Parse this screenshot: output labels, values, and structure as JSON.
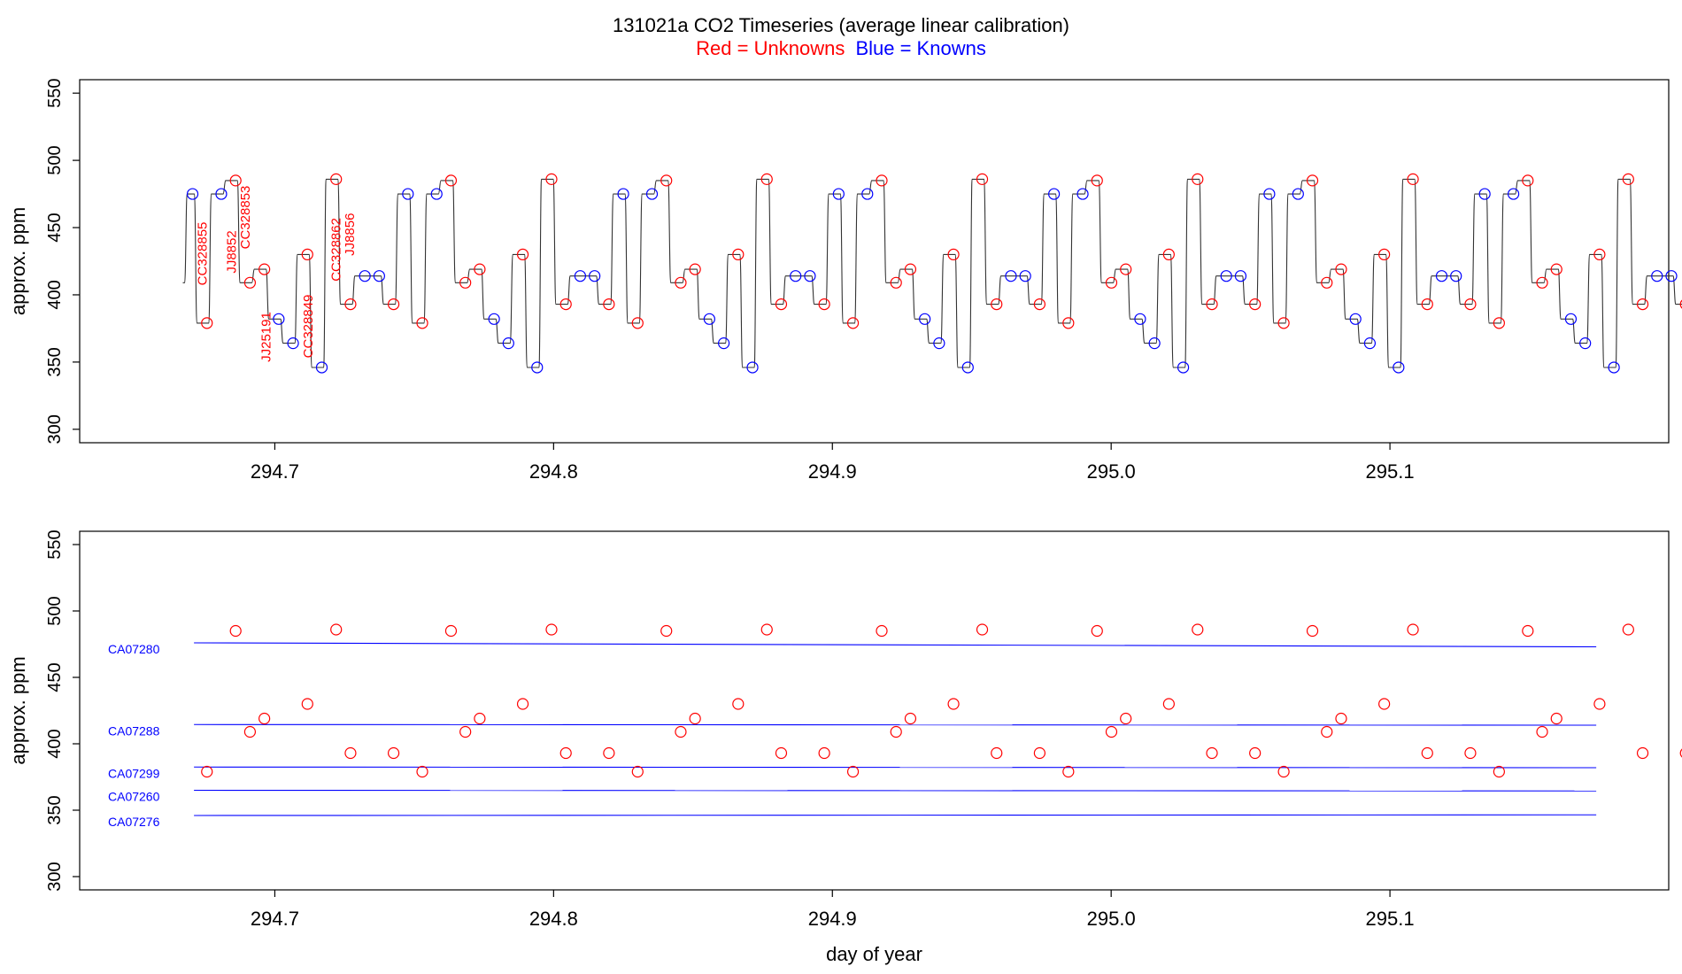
{
  "title": {
    "main": "131021a   CO2 Timeseries (average linear calibration)",
    "legend_red": "Red = Unknowns",
    "legend_blue": "Blue = Knowns"
  },
  "colors": {
    "unknown": "#ff0000",
    "known": "#0000ff",
    "trace": "#000000"
  },
  "chart_data": [
    {
      "type": "line",
      "panel": "top",
      "title": "131021a   CO2 Timeseries (average linear calibration)",
      "ylabel": "approx. ppm",
      "xlabel": "",
      "xlim": [
        294.63,
        295.2
      ],
      "ylim": [
        290,
        560
      ],
      "x_ticks": [
        294.7,
        294.8,
        294.9,
        295.0,
        295.1
      ],
      "x_tick_labels": [
        "294.7",
        "294.8",
        "294.9",
        "295.0",
        "295.1"
      ],
      "y_ticks": [
        300,
        350,
        400,
        450,
        500,
        550
      ],
      "y_tick_labels": [
        "300",
        "350",
        "400",
        "450",
        "500",
        "550"
      ],
      "trace_start": 409,
      "cycle_pattern": [
        {
          "kind": "known",
          "value": 475
        },
        {
          "kind": "unknown",
          "value": 379
        },
        {
          "kind": "known",
          "value": 475
        },
        {
          "kind": "unknown",
          "value": 485
        },
        {
          "kind": "unknown",
          "value": 409
        },
        {
          "kind": "unknown",
          "value": 419
        },
        {
          "kind": "known",
          "value": 382
        },
        {
          "kind": "known",
          "value": 364
        },
        {
          "kind": "unknown",
          "value": 430
        },
        {
          "kind": "known",
          "value": 346
        },
        {
          "kind": "unknown",
          "value": 486
        },
        {
          "kind": "unknown",
          "value": 393
        },
        {
          "kind": "known",
          "value": 414
        },
        {
          "kind": "known",
          "value": 414
        },
        {
          "kind": "unknown",
          "value": 393
        }
      ],
      "cycle_x_start": 294.6705,
      "sample_spacing": 0.00515,
      "cycles": 7,
      "annotations": [
        {
          "text": "CC328855",
          "x": 294.6755,
          "y": 407
        },
        {
          "text": "JJ8852",
          "x": 294.686,
          "y": 416
        },
        {
          "text": "CC328853",
          "x": 294.691,
          "y": 434
        },
        {
          "text": "JJ25191",
          "x": 294.6985,
          "y": 350
        },
        {
          "text": "CC328849",
          "x": 294.7135,
          "y": 353
        },
        {
          "text": "CC328862",
          "x": 294.7235,
          "y": 410
        },
        {
          "text": "JJ8856",
          "x": 294.7285,
          "y": 429
        }
      ]
    },
    {
      "type": "scatter",
      "panel": "bottom",
      "title": "",
      "ylabel": "approx. ppm",
      "xlabel": "day of year",
      "xlim": [
        294.63,
        295.2
      ],
      "ylim": [
        290,
        560
      ],
      "x_ticks": [
        294.7,
        294.8,
        294.9,
        295.0,
        295.1
      ],
      "x_tick_labels": [
        "294.7",
        "294.8",
        "294.9",
        "295.0",
        "295.1"
      ],
      "y_ticks": [
        300,
        350,
        400,
        450,
        500,
        550
      ],
      "y_tick_labels": [
        "300",
        "350",
        "400",
        "450",
        "500",
        "550"
      ],
      "unknown_points_from": "same sampling as top panel, unknowns only",
      "reference_lines": [
        {
          "name": "CA07280",
          "values": [
            476,
            473
          ],
          "x_range": [
            294.671,
            295.174
          ]
        },
        {
          "name": "CA07288",
          "values": [
            414.5,
            414
          ],
          "x_range": [
            294.671,
            295.174
          ]
        },
        {
          "name": "CA07299",
          "values": [
            382.5,
            382
          ],
          "x_range": [
            294.671,
            295.174
          ]
        },
        {
          "name": "CA07260",
          "values": [
            365,
            364.5
          ],
          "x_range": [
            294.671,
            295.174
          ]
        },
        {
          "name": "CA07276",
          "values": [
            346,
            346.5
          ],
          "x_range": [
            294.671,
            295.174
          ]
        }
      ]
    }
  ]
}
